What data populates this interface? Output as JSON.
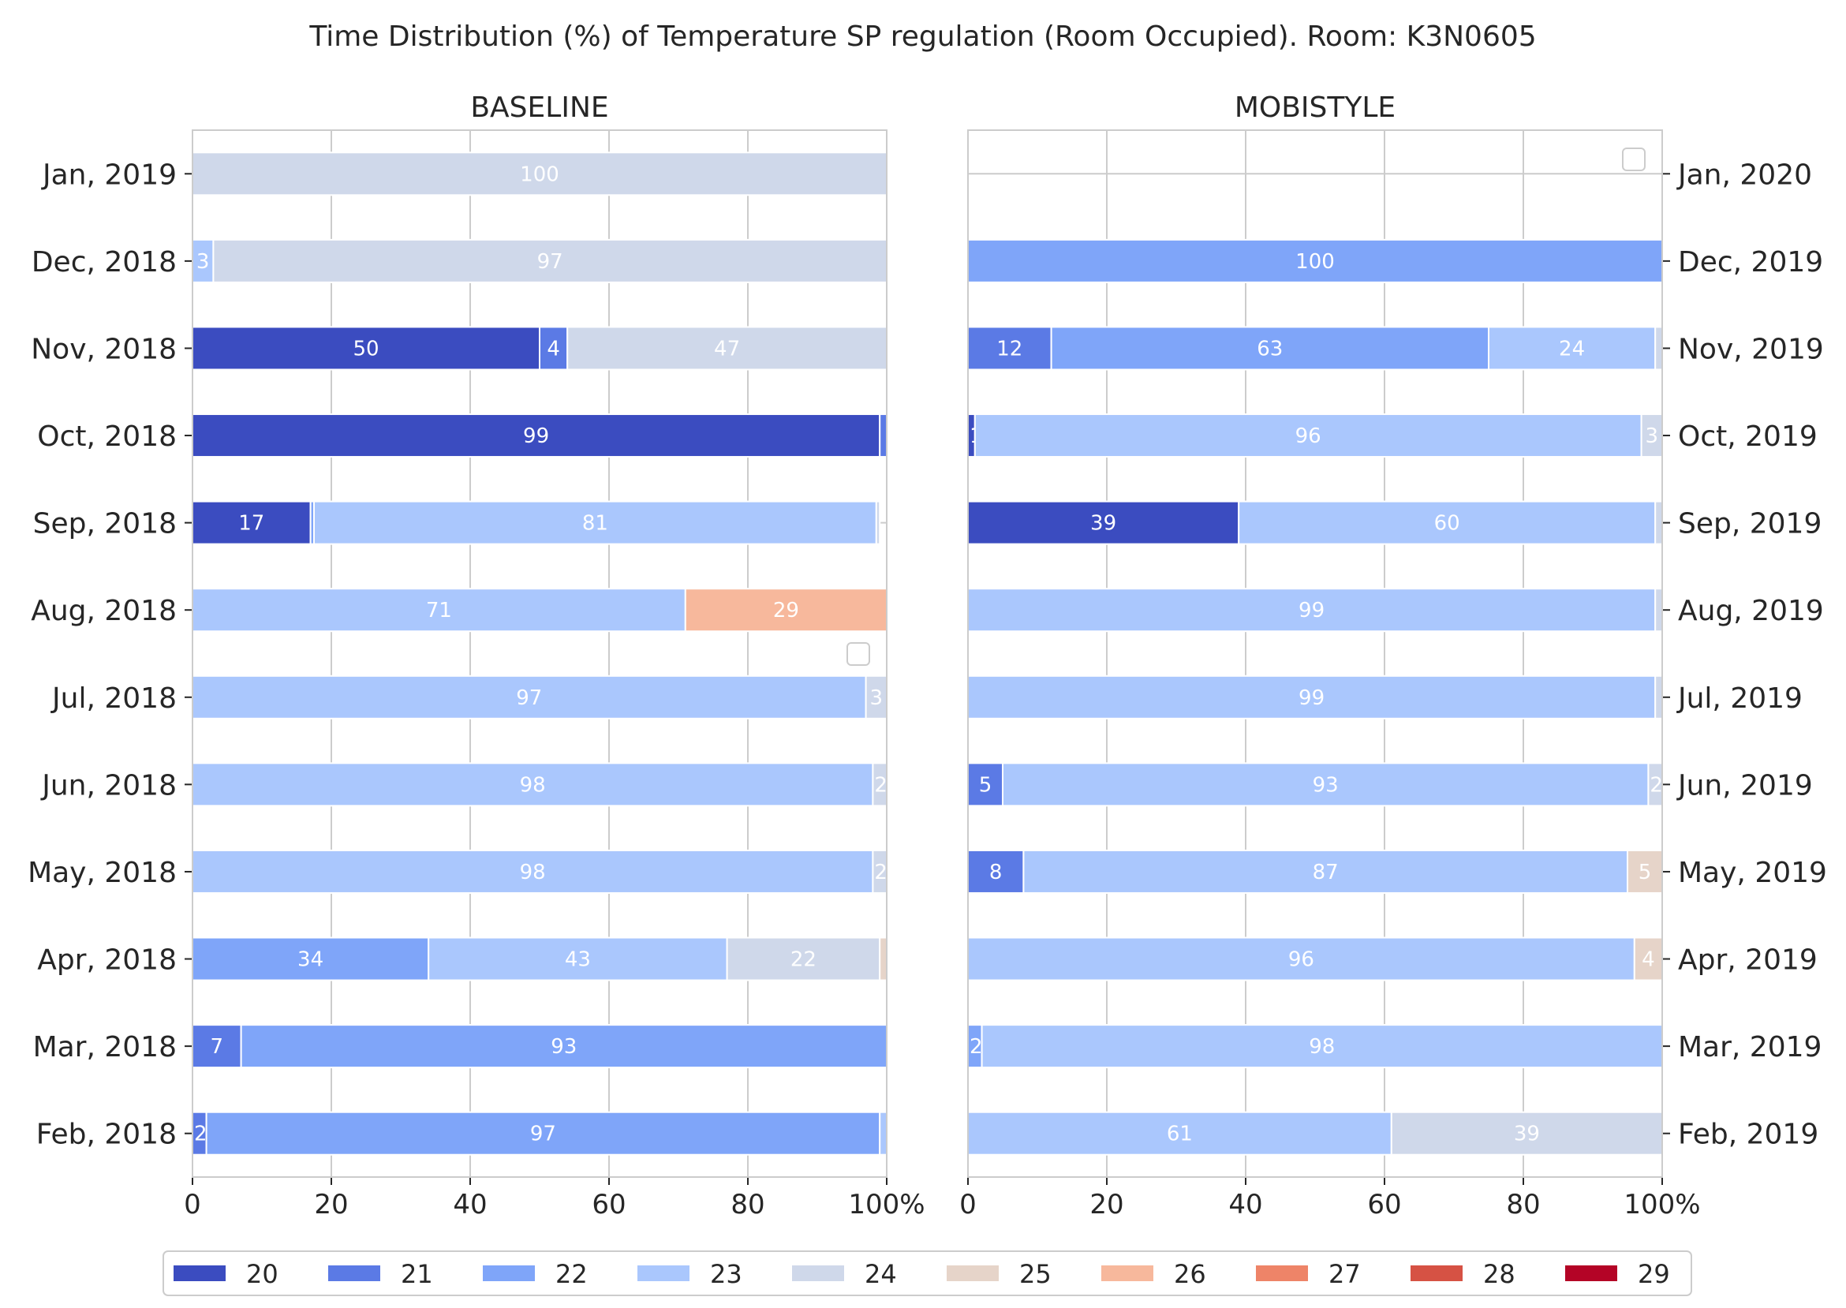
{
  "chart_data": {
    "type": "bar",
    "orientation": "horizontal-stacked",
    "title": "Time Distribution (%) of Temperature SP regulation (Room Occupied). Room: K3N0605",
    "categories_legend": [
      "20",
      "21",
      "22",
      "23",
      "24",
      "25",
      "26",
      "27",
      "28",
      "29"
    ],
    "colors": {
      "20": "#3b4cc0",
      "21": "#5b7ae5",
      "22": "#7fa5f9",
      "23": "#aac7fd",
      "24": "#cfd8ea",
      "25": "#e6d4c9",
      "26": "#f7b89c",
      "27": "#ee8468",
      "28": "#d65244",
      "29": "#b40426"
    },
    "xlim": [
      0,
      100
    ],
    "xticks": [
      "0",
      "20",
      "40",
      "60",
      "80",
      "100%"
    ],
    "grid": true,
    "legend_position": "bottom-center",
    "panels": [
      {
        "subtitle": "BASELINE",
        "ylabel_side": "left",
        "rows": [
          {
            "label": "Jan, 2019",
            "segments": [
              {
                "key": "24",
                "value": 100
              }
            ]
          },
          {
            "label": "Dec, 2018",
            "segments": [
              {
                "key": "23",
                "value": 3
              },
              {
                "key": "24",
                "value": 97
              }
            ]
          },
          {
            "label": "Nov, 2018",
            "segments": [
              {
                "key": "20",
                "value": 50
              },
              {
                "key": "21",
                "value": 4
              },
              {
                "key": "24",
                "value": 47
              }
            ]
          },
          {
            "label": "Oct, 2018",
            "segments": [
              {
                "key": "20",
                "value": 99
              },
              {
                "key": "21",
                "value": 1,
                "hide_label": true
              }
            ]
          },
          {
            "label": "Sep, 2018",
            "segments": [
              {
                "key": "20",
                "value": 17
              },
              {
                "key": "22",
                "value": 0.5,
                "hide_label": true
              },
              {
                "key": "23",
                "value": 81
              },
              {
                "key": "24",
                "value": 0.5,
                "hide_label": true
              }
            ]
          },
          {
            "label": "Aug, 2018",
            "segments": [
              {
                "key": "23",
                "value": 71
              },
              {
                "key": "26",
                "value": 29
              }
            ]
          },
          {
            "label": "Jul, 2018",
            "segments": [
              {
                "key": "23",
                "value": 97
              },
              {
                "key": "24",
                "value": 3
              }
            ]
          },
          {
            "label": "Jun, 2018",
            "segments": [
              {
                "key": "23",
                "value": 98
              },
              {
                "key": "24",
                "value": 2
              }
            ]
          },
          {
            "label": "May, 2018",
            "segments": [
              {
                "key": "23",
                "value": 98
              },
              {
                "key": "24",
                "value": 2
              }
            ]
          },
          {
            "label": "Apr, 2018",
            "segments": [
              {
                "key": "22",
                "value": 34
              },
              {
                "key": "23",
                "value": 43
              },
              {
                "key": "24",
                "value": 22
              },
              {
                "key": "25",
                "value": 1,
                "hide_label": true
              }
            ]
          },
          {
            "label": "Mar, 2018",
            "segments": [
              {
                "key": "21",
                "value": 7
              },
              {
                "key": "22",
                "value": 93
              }
            ]
          },
          {
            "label": "Feb, 2018",
            "segments": [
              {
                "key": "21",
                "value": 2
              },
              {
                "key": "22",
                "value": 97
              },
              {
                "key": "23",
                "value": 1,
                "hide_label": true
              }
            ]
          }
        ]
      },
      {
        "subtitle": "MOBISTYLE",
        "ylabel_side": "right",
        "rows": [
          {
            "label": "Jan, 2020",
            "segments": []
          },
          {
            "label": "Dec, 2019",
            "segments": [
              {
                "key": "22",
                "value": 100
              }
            ]
          },
          {
            "label": "Nov, 2019",
            "segments": [
              {
                "key": "21",
                "value": 12
              },
              {
                "key": "22",
                "value": 63
              },
              {
                "key": "23",
                "value": 24
              },
              {
                "key": "24",
                "value": 1,
                "hide_label": true
              }
            ]
          },
          {
            "label": "Oct, 2019",
            "segments": [
              {
                "key": "20",
                "value": 1
              },
              {
                "key": "23",
                "value": 96
              },
              {
                "key": "24",
                "value": 3
              }
            ]
          },
          {
            "label": "Sep, 2019",
            "segments": [
              {
                "key": "20",
                "value": 39
              },
              {
                "key": "23",
                "value": 60
              },
              {
                "key": "24",
                "value": 1,
                "hide_label": true
              }
            ]
          },
          {
            "label": "Aug, 2019",
            "segments": [
              {
                "key": "23",
                "value": 99
              },
              {
                "key": "24",
                "value": 1,
                "hide_label": true
              }
            ]
          },
          {
            "label": "Jul, 2019",
            "segments": [
              {
                "key": "23",
                "value": 99
              },
              {
                "key": "24",
                "value": 1,
                "hide_label": true
              }
            ]
          },
          {
            "label": "Jun, 2019",
            "segments": [
              {
                "key": "21",
                "value": 5
              },
              {
                "key": "23",
                "value": 93
              },
              {
                "key": "24",
                "value": 2
              }
            ]
          },
          {
            "label": "May, 2019",
            "segments": [
              {
                "key": "21",
                "value": 8
              },
              {
                "key": "23",
                "value": 87
              },
              {
                "key": "25",
                "value": 5
              }
            ]
          },
          {
            "label": "Apr, 2019",
            "segments": [
              {
                "key": "23",
                "value": 96
              },
              {
                "key": "25",
                "value": 4
              }
            ]
          },
          {
            "label": "Mar, 2019",
            "segments": [
              {
                "key": "22",
                "value": 2
              },
              {
                "key": "23",
                "value": 98
              }
            ]
          },
          {
            "label": "Feb, 2019",
            "segments": [
              {
                "key": "23",
                "value": 61
              },
              {
                "key": "24",
                "value": 39
              }
            ]
          }
        ]
      }
    ]
  }
}
